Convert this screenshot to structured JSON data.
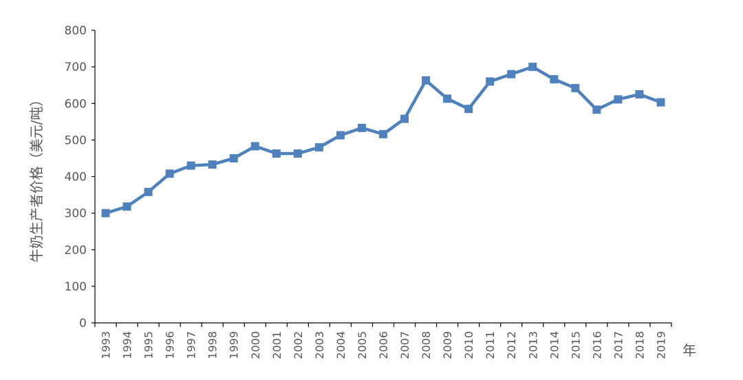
{
  "chart_data": {
    "type": "line",
    "title": "",
    "xlabel": "年",
    "ylabel": "牛奶生产者价格（美元/吨）",
    "ylim": [
      0,
      800
    ],
    "yticks": [
      0,
      100,
      200,
      300,
      400,
      500,
      600,
      700,
      800
    ],
    "grid": false,
    "legend": "none",
    "categories": [
      "1993",
      "1994",
      "1995",
      "1996",
      "1997",
      "1998",
      "1999",
      "2000",
      "2001",
      "2002",
      "2003",
      "2004",
      "2005",
      "2006",
      "2007",
      "2008",
      "2009",
      "2010",
      "2011",
      "2012",
      "2013",
      "2014",
      "2015",
      "2016",
      "2017",
      "2018",
      "2019"
    ],
    "series": [
      {
        "color": "#4f81bd",
        "values": [
          300,
          318,
          358,
          408,
          430,
          433,
          450,
          483,
          463,
          463,
          480,
          513,
          533,
          516,
          558,
          663,
          613,
          585,
          660,
          680,
          700,
          666,
          642,
          583,
          611,
          625,
          603
        ]
      }
    ]
  }
}
